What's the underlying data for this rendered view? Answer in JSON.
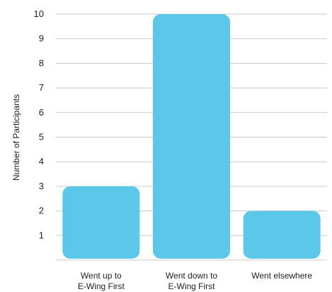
{
  "chart_data": {
    "type": "bar",
    "categories": [
      [
        "Went up to",
        "E-Wing First"
      ],
      [
        "Went down to",
        "E-Wing First"
      ],
      [
        "Went elsewhere"
      ]
    ],
    "values": [
      3,
      10,
      2
    ],
    "title": "",
    "xlabel": "",
    "ylabel": "Number of Participants",
    "ylim": [
      0,
      10
    ],
    "yticks": [
      1,
      2,
      3,
      4,
      5,
      6,
      7,
      8,
      9,
      10
    ],
    "grid": true,
    "bar_color": "#5BC8EA",
    "grid_color": "#c9c9c9"
  }
}
